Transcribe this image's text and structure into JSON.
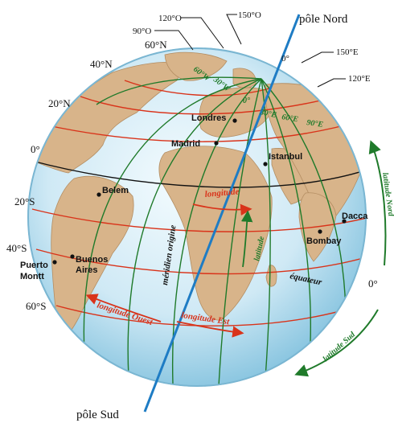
{
  "colors": {
    "ocean_light": "#e9f6fb",
    "ocean_dark": "#7fc0dd",
    "land": "#d8b48a",
    "parallel": "#d9331a",
    "meridian": "#1f7a2a",
    "axis": "#1e7cc4",
    "equator": "#111111"
  },
  "poles": {
    "north": "pôle Nord",
    "south": "pôle Sud"
  },
  "latitudes_left": [
    "60°N",
    "40°N",
    "20°N",
    "0°",
    "20°S",
    "40°S",
    "60°S"
  ],
  "latitude_right": "0°",
  "longitudes_top": [
    "90°O",
    "120°O",
    "150°O",
    "150°E",
    "120°E"
  ],
  "longitudes_arc": [
    "60°W",
    "30°W",
    "0°",
    "30°E",
    "60°E",
    "90°E"
  ],
  "zero_top": "0°",
  "cities": {
    "londres": "Londres",
    "madrid": "Madrid",
    "istanbul": "Istanbul",
    "belem": "Belem",
    "dacca": "Dacca",
    "bombay": "Bombay",
    "buenos": "Buenos",
    "aires": "Aires",
    "puerto": "Puerto",
    "montt": "Montt"
  },
  "annotations": {
    "longitude": "longitude",
    "latitude": "latitude",
    "meridien": "méridien origine",
    "equateur": "équateur",
    "longitude_ouest": "longitude Ouest",
    "longitude_est": "longitude Est",
    "latitude_nord": "latitude Nord",
    "latitude_sud": "latitude Sud"
  }
}
